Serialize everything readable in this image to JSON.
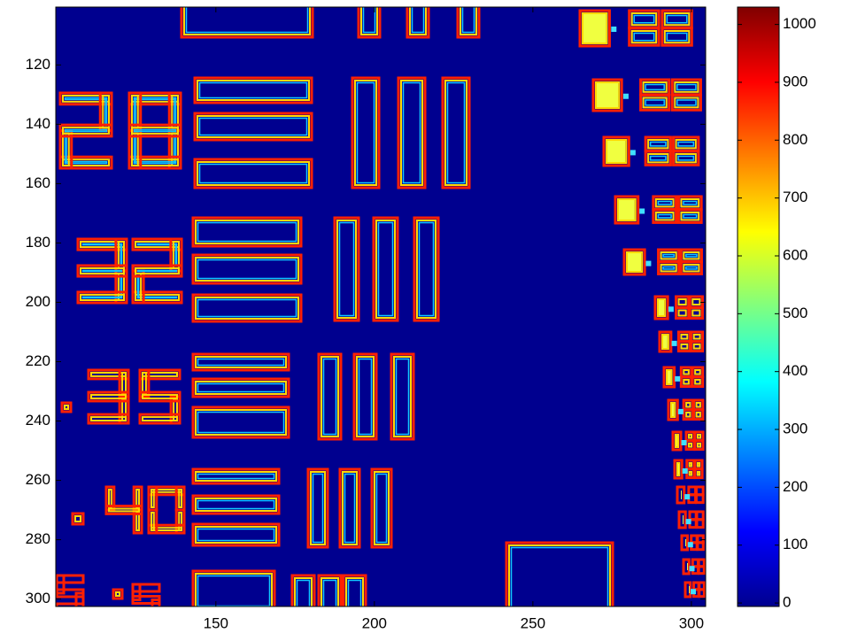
{
  "chart_data": {
    "type": "heatmap",
    "colormap": "jet",
    "xlim": [
      99.5,
      304.5
    ],
    "xticks": [
      150,
      200,
      250,
      300
    ],
    "ylim": [
      100.5,
      302.5
    ],
    "yticks": [
      120,
      140,
      160,
      180,
      200,
      220,
      240,
      260,
      280,
      300
    ],
    "colorbar": {
      "lim": [
        -6,
        1030
      ],
      "ticks": [
        0,
        100,
        200,
        300,
        400,
        500,
        600,
        700,
        800,
        900,
        1000
      ]
    }
  }
}
